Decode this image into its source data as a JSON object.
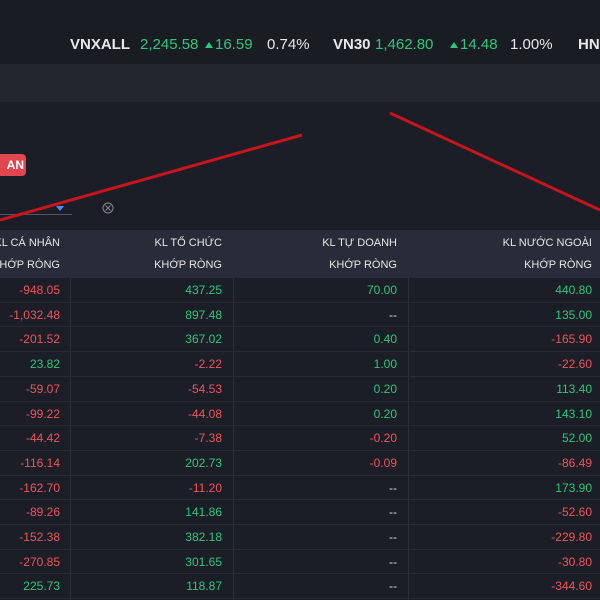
{
  "ticker": [
    {
      "name": "VNXALL",
      "value": "2,245.58",
      "change": "16.59",
      "percent": "0.74%"
    },
    {
      "name": "VN30",
      "value": "1,462.80",
      "change": "14.48",
      "percent": "1.00%"
    },
    {
      "name": "HN"
    }
  ],
  "button": {
    "label": "AN"
  },
  "table": {
    "headers": [
      [
        "KL CÁ NHÂN",
        "KHỚP RÒNG"
      ],
      [
        "KL TỔ CHỨC",
        "KHỚP RÒNG"
      ],
      [
        "KL TỰ DOANH",
        "KHỚP RÒNG"
      ],
      [
        "KL NƯỚC NGOÀI",
        "KHỚP RÒNG"
      ]
    ],
    "rows": [
      [
        "-948.05",
        "437.25",
        "70.00",
        "440.80"
      ],
      [
        "-1,032.48",
        "897.48",
        "--",
        "135.00"
      ],
      [
        "-201.52",
        "367.02",
        "0.40",
        "-165.90"
      ],
      [
        "23.82",
        "-2.22",
        "1.00",
        "-22.60"
      ],
      [
        "-59.07",
        "-54.53",
        "0.20",
        "113.40"
      ],
      [
        "-99.22",
        "-44.08",
        "0.20",
        "143.10"
      ],
      [
        "-44.42",
        "-7.38",
        "-0.20",
        "52.00"
      ],
      [
        "-116.14",
        "202.73",
        "-0.09",
        "-86.49"
      ],
      [
        "-162.70",
        "-11.20",
        "--",
        "173.90"
      ],
      [
        "-89.26",
        "141.86",
        "--",
        "-52.60"
      ],
      [
        "-152.38",
        "382.18",
        "--",
        "-229.80"
      ],
      [
        "-270.85",
        "301.65",
        "--",
        "-30.80"
      ],
      [
        "225.73",
        "118.87",
        "--",
        "-344.60"
      ]
    ]
  }
}
